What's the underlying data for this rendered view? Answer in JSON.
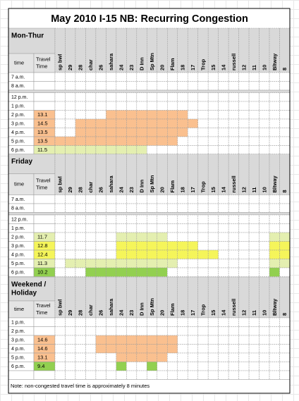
{
  "title": "May 2010 I-15 NB:  Recurring Congestion",
  "columns": [
    "sp bwl",
    "29",
    "28",
    "char",
    "26",
    "sahara",
    "24",
    "23",
    "D Inn",
    "Sp Mtn",
    "20",
    "Flam",
    "18",
    "17",
    "Trop",
    "15",
    "14",
    "russell",
    "12",
    "11",
    "10",
    "Bltway",
    "8"
  ],
  "headers": {
    "time": "time",
    "travel": [
      "Travel",
      "Time"
    ]
  },
  "sections": [
    {
      "label": [
        "Mon-Thur"
      ],
      "rows": [
        {
          "time": "7 a.m."
        },
        {
          "time": "8 a.m."
        },
        null,
        {
          "time": "12 p.m."
        },
        {
          "time": "1 p.m."
        },
        {
          "time": "2 p.m.",
          "travel": 13.1,
          "color": "#fac08f",
          "spans": [
            {
              "from": 5,
              "to": 12,
              "color": "#fac08f"
            }
          ]
        },
        {
          "time": "3 p.m.",
          "travel": 14.5,
          "color": "#fac08f",
          "spans": [
            {
              "from": 2,
              "to": 13,
              "color": "#fac08f"
            }
          ]
        },
        {
          "time": "4 p.m.",
          "travel": 13.5,
          "color": "#fac08f",
          "spans": [
            {
              "from": 2,
              "to": 12,
              "color": "#fac08f"
            }
          ]
        },
        {
          "time": "5 p.m.",
          "travel": 13.5,
          "color": "#fac08f",
          "spans": [
            {
              "from": 0,
              "to": 11,
              "color": "#fac08f"
            }
          ]
        },
        {
          "time": "6 p.m.",
          "travel": 11.5,
          "color": "#e4efb0",
          "spans": [
            {
              "from": 0,
              "to": 8,
              "color": "#e4efb0"
            }
          ]
        }
      ]
    },
    {
      "label": [
        "Friday"
      ],
      "rows": [
        {
          "time": "7 a.m."
        },
        {
          "time": "8 a.m."
        },
        null,
        {
          "time": "12 p.m."
        },
        {
          "time": "1 p.m."
        },
        {
          "time": "2 p.m.",
          "travel": 11.7,
          "color": "#e4efb0",
          "spans": [
            {
              "from": 6,
              "to": 10,
              "color": "#e4efb0"
            },
            {
              "from": 21,
              "to": 22,
              "color": "#e4efb0"
            }
          ]
        },
        {
          "time": "3 p.m.",
          "travel": 12.8,
          "color": "#f5f55a",
          "spans": [
            {
              "from": 6,
              "to": 13,
              "color": "#f5f55a"
            },
            {
              "from": 21,
              "to": 22,
              "color": "#f5f55a"
            }
          ]
        },
        {
          "time": "4 p.m.",
          "travel": 12.4,
          "color": "#f5f55a",
          "spans": [
            {
              "from": 6,
              "to": 15,
              "color": "#f5f55a"
            },
            {
              "from": 21,
              "to": 22,
              "color": "#f5f55a"
            }
          ]
        },
        {
          "time": "5 p.m.",
          "travel": 11.3,
          "color": "#e4efb0",
          "spans": [
            {
              "from": 1,
              "to": 11,
              "color": "#e4efb0"
            },
            {
              "from": 21,
              "to": 22,
              "color": "#e4efb0"
            }
          ]
        },
        {
          "time": "6 p.m.",
          "travel": 10.2,
          "color": "#92d050",
          "spans": [
            {
              "from": 3,
              "to": 10,
              "color": "#92d050"
            },
            {
              "from": 21,
              "to": 21,
              "color": "#92d050"
            }
          ]
        }
      ]
    },
    {
      "label": [
        "Weekend /",
        "Holiday"
      ],
      "rows": [
        {
          "time": "1 p.m."
        },
        {
          "time": "2 p.m."
        },
        {
          "time": "3 p.m.",
          "travel": 14.6,
          "color": "#fac08f",
          "spans": [
            {
              "from": 4,
              "to": 11,
              "color": "#fac08f"
            }
          ]
        },
        {
          "time": "4 p.m.",
          "travel": 14.6,
          "color": "#fac08f",
          "spans": [
            {
              "from": 4,
              "to": 11,
              "color": "#fac08f"
            }
          ]
        },
        {
          "time": "5 p.m.",
          "travel": 13.1,
          "color": "#fac08f",
          "spans": [
            {
              "from": 6,
              "to": 10,
              "color": "#fac08f"
            }
          ]
        },
        {
          "time": "6 p.m.",
          "travel": 9.4,
          "color": "#92d050",
          "spans": [
            {
              "from": 6,
              "to": 6,
              "color": "#92d050"
            },
            {
              "from": 9,
              "to": 9,
              "color": "#92d050"
            }
          ]
        }
      ]
    }
  ],
  "note": "Note:  non-congested travel time is approximately 8 minutes"
}
